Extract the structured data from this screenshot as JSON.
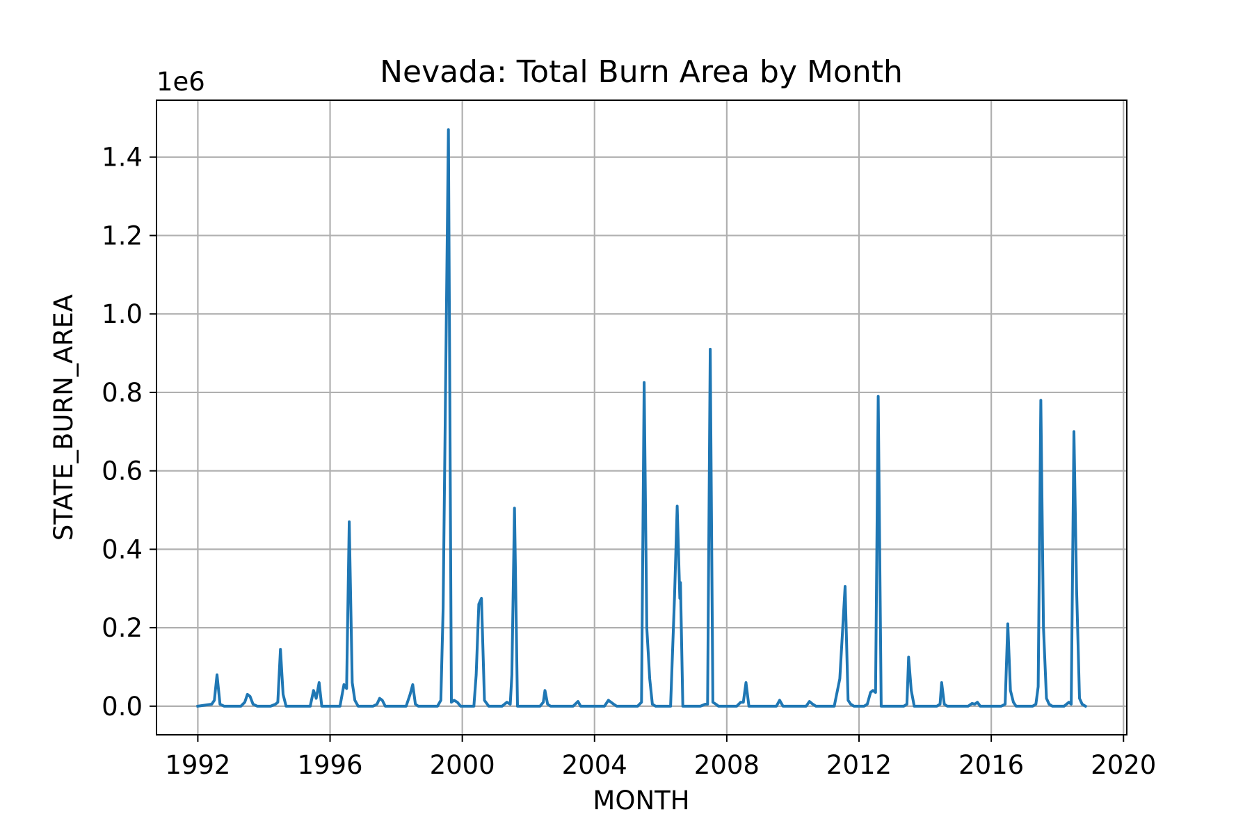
{
  "chart_data": {
    "type": "line",
    "title": "Nevada: Total Burn Area by Month",
    "xlabel": "MONTH",
    "ylabel": "STATE_BURN_AREA",
    "y_offset_label": "1e6",
    "xlim": [
      1990.75,
      2020.1
    ],
    "ylim": [
      -0.073,
      1.545
    ],
    "x_ticks": [
      1992,
      1996,
      2000,
      2004,
      2008,
      2012,
      2016,
      2020
    ],
    "x_tick_labels": [
      "1992",
      "1996",
      "2000",
      "2004",
      "2008",
      "2012",
      "2016",
      "2020"
    ],
    "y_ticks": [
      0.0,
      0.2,
      0.4,
      0.6,
      0.8,
      1.0,
      1.2,
      1.4
    ],
    "y_tick_labels": [
      "0.0",
      "0.2",
      "0.4",
      "0.6",
      "0.8",
      "1.0",
      "1.2",
      "1.4"
    ],
    "grid": true,
    "line_color": "#1f77b4",
    "series": [
      {
        "name": "",
        "points": [
          [
            1992.0,
            0.0
          ],
          [
            1992.42,
            0.005
          ],
          [
            1992.5,
            0.015
          ],
          [
            1992.58,
            0.08
          ],
          [
            1992.67,
            0.005
          ],
          [
            1992.8,
            0.0
          ],
          [
            1993.3,
            0.0
          ],
          [
            1993.42,
            0.01
          ],
          [
            1993.5,
            0.03
          ],
          [
            1993.58,
            0.025
          ],
          [
            1993.67,
            0.005
          ],
          [
            1993.8,
            0.0
          ],
          [
            1994.2,
            0.0
          ],
          [
            1994.35,
            0.005
          ],
          [
            1994.42,
            0.01
          ],
          [
            1994.5,
            0.145
          ],
          [
            1994.58,
            0.03
          ],
          [
            1994.67,
            0.0
          ],
          [
            1995.4,
            0.0
          ],
          [
            1995.5,
            0.04
          ],
          [
            1995.58,
            0.02
          ],
          [
            1995.67,
            0.06
          ],
          [
            1995.75,
            0.0
          ],
          [
            1996.3,
            0.0
          ],
          [
            1996.42,
            0.055
          ],
          [
            1996.5,
            0.045
          ],
          [
            1996.58,
            0.47
          ],
          [
            1996.67,
            0.06
          ],
          [
            1996.75,
            0.015
          ],
          [
            1996.85,
            0.0
          ],
          [
            1997.3,
            0.0
          ],
          [
            1997.42,
            0.005
          ],
          [
            1997.5,
            0.02
          ],
          [
            1997.58,
            0.015
          ],
          [
            1997.67,
            0.0
          ],
          [
            1998.3,
            0.0
          ],
          [
            1998.42,
            0.03
          ],
          [
            1998.5,
            0.055
          ],
          [
            1998.58,
            0.005
          ],
          [
            1998.67,
            0.0
          ],
          [
            1999.25,
            0.0
          ],
          [
            1999.35,
            0.015
          ],
          [
            1999.42,
            0.25
          ],
          [
            1999.58,
            1.47
          ],
          [
            1999.67,
            0.01
          ],
          [
            1999.75,
            0.015
          ],
          [
            1999.85,
            0.01
          ],
          [
            1999.95,
            0.0
          ],
          [
            2000.35,
            0.0
          ],
          [
            2000.42,
            0.08
          ],
          [
            2000.5,
            0.26
          ],
          [
            2000.58,
            0.275
          ],
          [
            2000.67,
            0.015
          ],
          [
            2000.8,
            0.0
          ],
          [
            2001.2,
            0.0
          ],
          [
            2001.35,
            0.01
          ],
          [
            2001.45,
            0.005
          ],
          [
            2001.5,
            0.08
          ],
          [
            2001.58,
            0.505
          ],
          [
            2001.67,
            0.0
          ],
          [
            2002.35,
            0.0
          ],
          [
            2002.45,
            0.01
          ],
          [
            2002.5,
            0.04
          ],
          [
            2002.58,
            0.005
          ],
          [
            2002.67,
            0.0
          ],
          [
            2003.35,
            0.0
          ],
          [
            2003.5,
            0.012
          ],
          [
            2003.58,
            0.0
          ],
          [
            2004.3,
            0.0
          ],
          [
            2004.42,
            0.015
          ],
          [
            2004.5,
            0.01
          ],
          [
            2004.58,
            0.005
          ],
          [
            2004.67,
            0.0
          ],
          [
            2005.3,
            0.0
          ],
          [
            2005.42,
            0.01
          ],
          [
            2005.5,
            0.825
          ],
          [
            2005.58,
            0.2
          ],
          [
            2005.67,
            0.07
          ],
          [
            2005.75,
            0.005
          ],
          [
            2005.85,
            0.0
          ],
          [
            2006.3,
            0.0
          ],
          [
            2006.42,
            0.28
          ],
          [
            2006.5,
            0.51
          ],
          [
            2006.58,
            0.275
          ],
          [
            2006.6,
            0.315
          ],
          [
            2006.67,
            0.0
          ],
          [
            2007.2,
            0.0
          ],
          [
            2007.35,
            0.005
          ],
          [
            2007.42,
            0.005
          ],
          [
            2007.5,
            0.91
          ],
          [
            2007.58,
            0.01
          ],
          [
            2007.67,
            0.005
          ],
          [
            2007.75,
            0.0
          ],
          [
            2008.3,
            0.0
          ],
          [
            2008.42,
            0.01
          ],
          [
            2008.5,
            0.01
          ],
          [
            2008.58,
            0.06
          ],
          [
            2008.67,
            0.0
          ],
          [
            2009.5,
            0.0
          ],
          [
            2009.6,
            0.015
          ],
          [
            2009.7,
            0.0
          ],
          [
            2010.4,
            0.0
          ],
          [
            2010.5,
            0.012
          ],
          [
            2010.6,
            0.005
          ],
          [
            2010.7,
            0.0
          ],
          [
            2011.25,
            0.0
          ],
          [
            2011.42,
            0.07
          ],
          [
            2011.58,
            0.305
          ],
          [
            2011.67,
            0.015
          ],
          [
            2011.75,
            0.005
          ],
          [
            2011.85,
            0.0
          ],
          [
            2012.15,
            0.0
          ],
          [
            2012.25,
            0.005
          ],
          [
            2012.35,
            0.035
          ],
          [
            2012.42,
            0.04
          ],
          [
            2012.5,
            0.035
          ],
          [
            2012.58,
            0.79
          ],
          [
            2012.67,
            0.0
          ],
          [
            2013.35,
            0.0
          ],
          [
            2013.45,
            0.005
          ],
          [
            2013.5,
            0.125
          ],
          [
            2013.58,
            0.04
          ],
          [
            2013.67,
            0.0
          ],
          [
            2014.35,
            0.0
          ],
          [
            2014.45,
            0.005
          ],
          [
            2014.5,
            0.06
          ],
          [
            2014.58,
            0.005
          ],
          [
            2014.67,
            0.0
          ],
          [
            2015.3,
            0.0
          ],
          [
            2015.42,
            0.007
          ],
          [
            2015.5,
            0.005
          ],
          [
            2015.58,
            0.01
          ],
          [
            2015.67,
            0.0
          ],
          [
            2016.3,
            0.0
          ],
          [
            2016.42,
            0.005
          ],
          [
            2016.5,
            0.21
          ],
          [
            2016.58,
            0.04
          ],
          [
            2016.67,
            0.01
          ],
          [
            2016.75,
            0.0
          ],
          [
            2017.25,
            0.0
          ],
          [
            2017.35,
            0.005
          ],
          [
            2017.42,
            0.05
          ],
          [
            2017.5,
            0.78
          ],
          [
            2017.58,
            0.2
          ],
          [
            2017.67,
            0.02
          ],
          [
            2017.75,
            0.005
          ],
          [
            2017.85,
            0.0
          ],
          [
            2018.2,
            0.0
          ],
          [
            2018.35,
            0.01
          ],
          [
            2018.42,
            0.005
          ],
          [
            2018.5,
            0.7
          ],
          [
            2018.58,
            0.3
          ],
          [
            2018.67,
            0.02
          ],
          [
            2018.75,
            0.005
          ],
          [
            2018.85,
            0.0
          ]
        ]
      }
    ]
  }
}
